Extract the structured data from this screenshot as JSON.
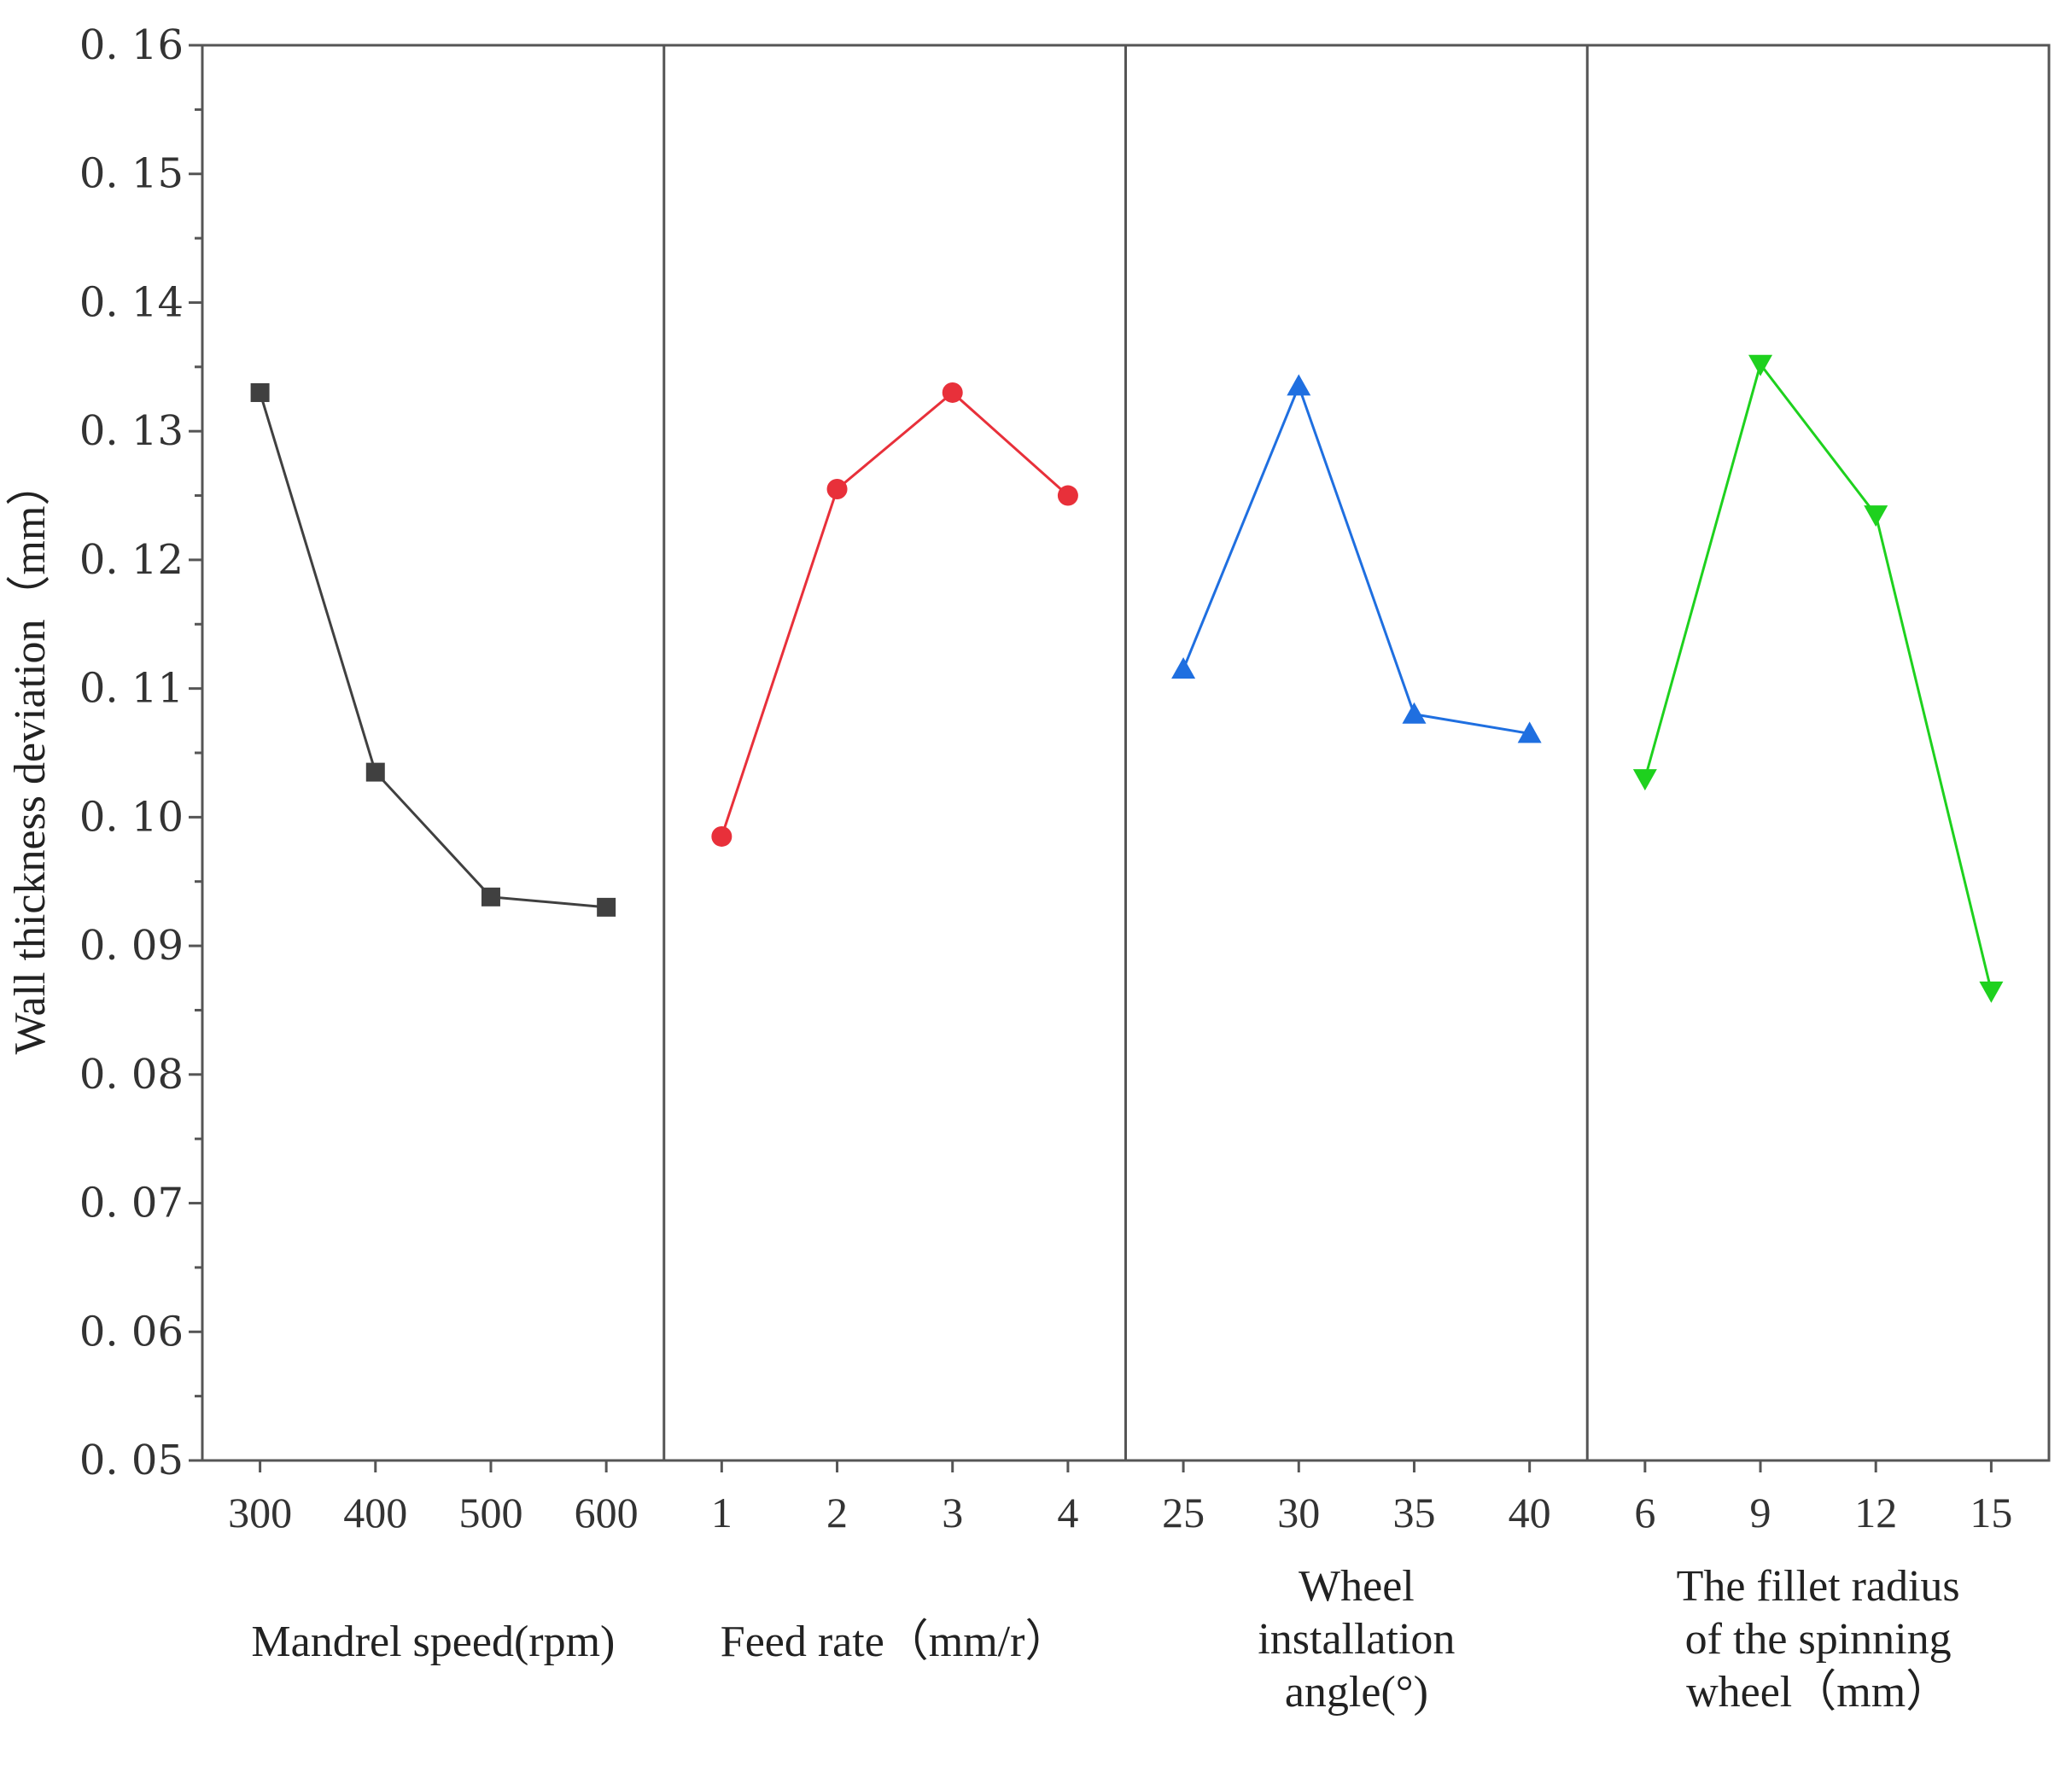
{
  "chart_data": {
    "type": "line",
    "ylabel": "Wall thickness deviation（mm）",
    "ylim": [
      0.05,
      0.16
    ],
    "yticks": [
      "0. 05",
      "0. 06",
      "0. 07",
      "0. 08",
      "0. 09",
      "0. 10",
      "0. 11",
      "0. 12",
      "0. 13",
      "0. 14",
      "0. 15",
      "0. 16"
    ],
    "panels": [
      {
        "name": "mandrel-speed",
        "xlabel_lines": [
          "Mandrel speed(rpm)"
        ],
        "categories": [
          "300",
          "400",
          "500",
          "600"
        ],
        "values": [
          0.133,
          0.1035,
          0.0938,
          0.093
        ],
        "color": "#404040",
        "marker": "square"
      },
      {
        "name": "feed-rate",
        "xlabel_lines": [
          "Feed rate（mm/r）"
        ],
        "categories": [
          "1",
          "2",
          "3",
          "4"
        ],
        "values": [
          0.0985,
          0.1255,
          0.133,
          0.125
        ],
        "color": "#e8303a",
        "marker": "circle"
      },
      {
        "name": "wheel-installation-angle",
        "xlabel_lines": [
          "Wheel",
          "installation",
          "angle(°)"
        ],
        "categories": [
          "25",
          "30",
          "35",
          "40"
        ],
        "values": [
          0.1115,
          0.1335,
          0.108,
          0.1065
        ],
        "color": "#1f6fe0",
        "marker": "triangle-up"
      },
      {
        "name": "fillet-radius",
        "xlabel_lines": [
          "The fillet radius",
          "of the spinning",
          "wheel（mm）"
        ],
        "categories": [
          "6",
          "9",
          "12",
          "15"
        ],
        "values": [
          0.103,
          0.1352,
          0.1235,
          0.0865
        ],
        "color": "#1ed11e",
        "marker": "triangle-down"
      }
    ]
  }
}
